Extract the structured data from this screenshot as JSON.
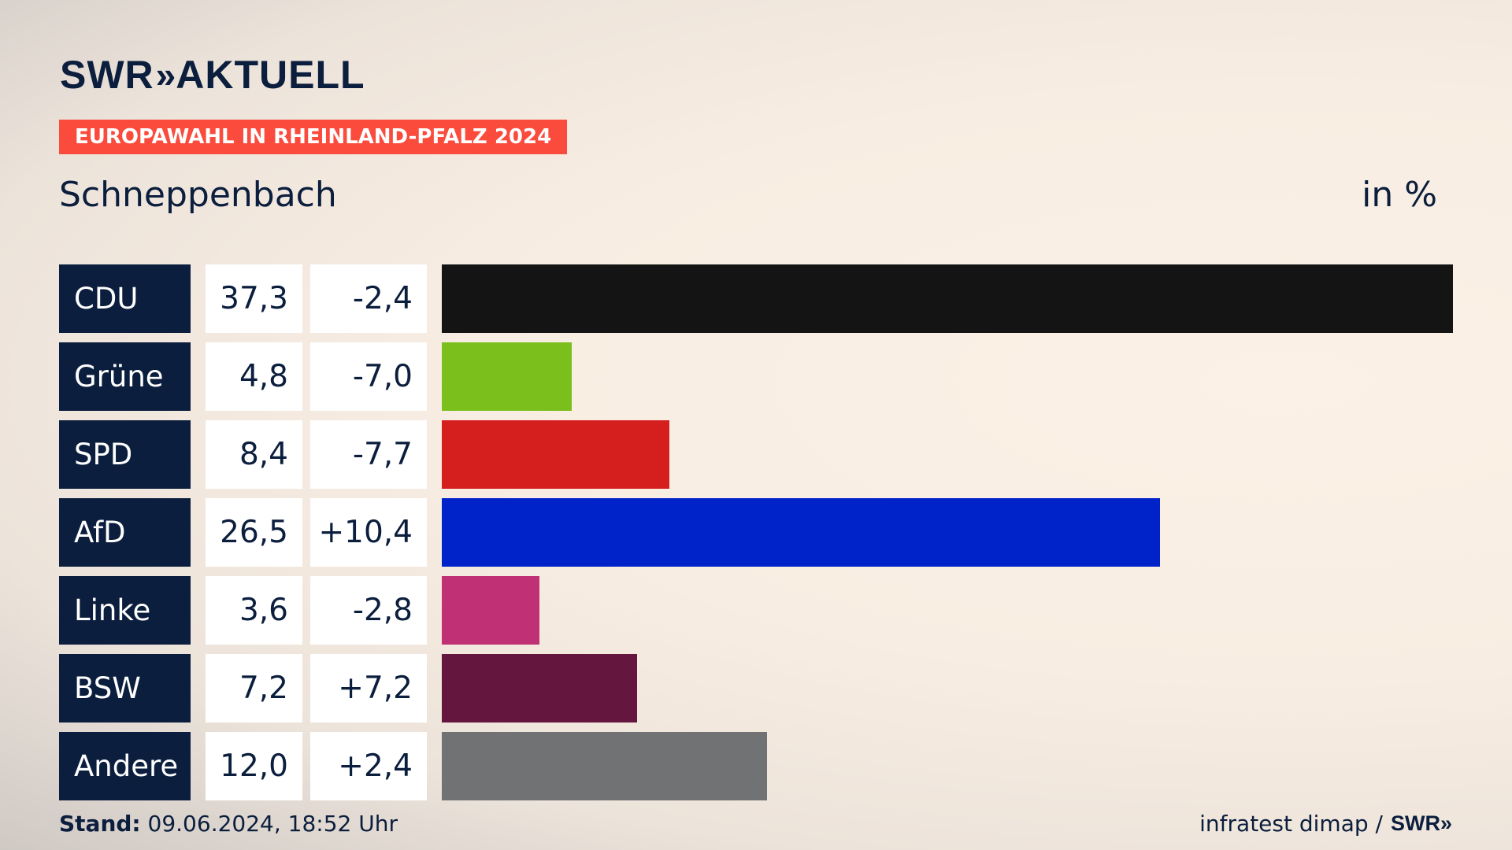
{
  "header": {
    "logo_text": "SWR",
    "logo_chevron": "»",
    "logo_sub": "AKTUELL",
    "badge": "EUROPAWAHL IN RHEINLAND-PFALZ 2024",
    "place": "Schneppenbach",
    "unit": "in %"
  },
  "colors": {
    "navy": "#0b1e3d",
    "badge": "#fa4b3c"
  },
  "chart_data": {
    "type": "bar",
    "orientation": "horizontal",
    "unit": "in %",
    "categories": [
      "CDU",
      "Grüne",
      "SPD",
      "AfD",
      "Linke",
      "BSW",
      "Andere"
    ],
    "values": [
      37.3,
      4.8,
      8.4,
      26.5,
      3.6,
      7.2,
      12.0
    ],
    "value_labels": [
      "37,3",
      "4,8",
      "8,4",
      "26,5",
      "3,6",
      "7,2",
      "12,0"
    ],
    "diff_labels": [
      "-2,4",
      "-7,0",
      "-7,7",
      "+10,4",
      "-2,8",
      "+7,2",
      "+2,4"
    ],
    "colors": [
      "#141414",
      "#7abf1c",
      "#d51f1f",
      "#0022c9",
      "#c03075",
      "#65163e",
      "#717274"
    ],
    "xlim": [
      0,
      37.3
    ]
  },
  "footer": {
    "stand_label": "Stand:",
    "stand_value": "09.06.2024, 18:52 Uhr",
    "source": "infratest dimap /",
    "source_logo": "SWR",
    "source_logo_chevron": "»"
  }
}
